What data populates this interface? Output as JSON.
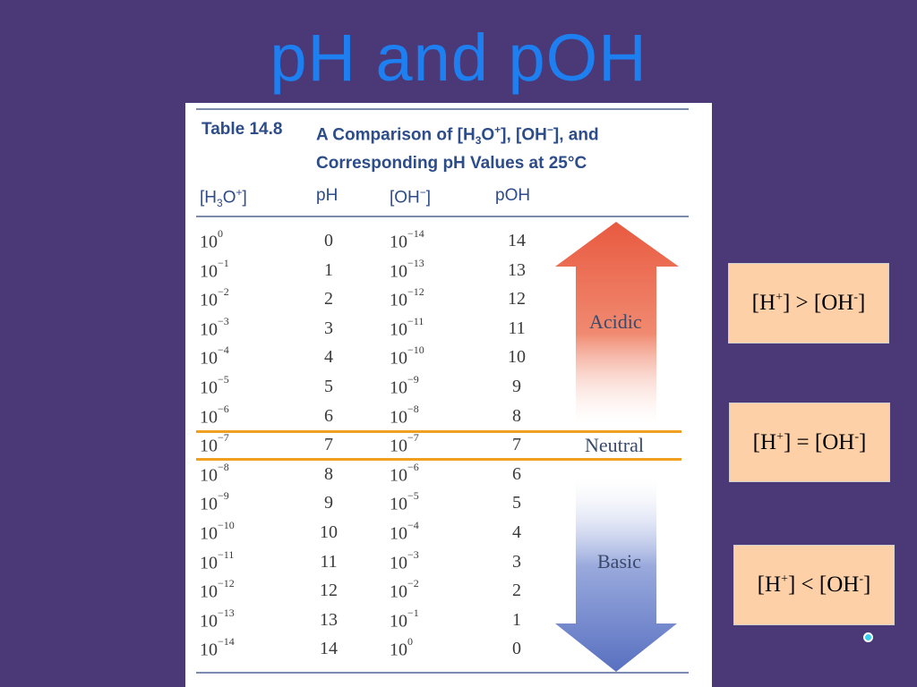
{
  "title": "pH and pOH",
  "table": {
    "number": "Table 14.8",
    "caption_pre": "A Comparison of [H",
    "caption_sub": "3",
    "caption_mid1": "O",
    "caption_sup1": "+",
    "caption_mid2": "], [OH",
    "caption_sup2": "−",
    "caption_end1": "], and",
    "caption_line2": "Corresponding pH Values at 25°C",
    "headers": {
      "h3o_pre": "[H",
      "h3o_sub": "3",
      "h3o_mid": "O",
      "h3o_sup": "+",
      "h3o_end": "]",
      "ph": "pH",
      "oh_pre": "[OH",
      "oh_sup": "−",
      "oh_end": "]",
      "poh": "pOH"
    },
    "rows": [
      {
        "h3o_base": "10",
        "h3o_exp": "0",
        "ph": "0",
        "oh_base": "10",
        "oh_exp": "−14",
        "poh": "14"
      },
      {
        "h3o_base": "10",
        "h3o_exp": "−1",
        "ph": "1",
        "oh_base": "10",
        "oh_exp": "−13",
        "poh": "13"
      },
      {
        "h3o_base": "10",
        "h3o_exp": "−2",
        "ph": "2",
        "oh_base": "10",
        "oh_exp": "−12",
        "poh": "12"
      },
      {
        "h3o_base": "10",
        "h3o_exp": "−3",
        "ph": "3",
        "oh_base": "10",
        "oh_exp": "−11",
        "poh": "11"
      },
      {
        "h3o_base": "10",
        "h3o_exp": "−4",
        "ph": "4",
        "oh_base": "10",
        "oh_exp": "−10",
        "poh": "10"
      },
      {
        "h3o_base": "10",
        "h3o_exp": "−5",
        "ph": "5",
        "oh_base": "10",
        "oh_exp": "−9",
        "poh": "9"
      },
      {
        "h3o_base": "10",
        "h3o_exp": "−6",
        "ph": "6",
        "oh_base": "10",
        "oh_exp": "−8",
        "poh": "8"
      },
      {
        "h3o_base": "10",
        "h3o_exp": "−7",
        "ph": "7",
        "oh_base": "10",
        "oh_exp": "−7",
        "poh": "7"
      },
      {
        "h3o_base": "10",
        "h3o_exp": "−8",
        "ph": "8",
        "oh_base": "10",
        "oh_exp": "−6",
        "poh": "6"
      },
      {
        "h3o_base": "10",
        "h3o_exp": "−9",
        "ph": "9",
        "oh_base": "10",
        "oh_exp": "−5",
        "poh": "5"
      },
      {
        "h3o_base": "10",
        "h3o_exp": "−10",
        "ph": "10",
        "oh_base": "10",
        "oh_exp": "−4",
        "poh": "4"
      },
      {
        "h3o_base": "10",
        "h3o_exp": "−11",
        "ph": "11",
        "oh_base": "10",
        "oh_exp": "−3",
        "poh": "3"
      },
      {
        "h3o_base": "10",
        "h3o_exp": "−12",
        "ph": "12",
        "oh_base": "10",
        "oh_exp": "−2",
        "poh": "2"
      },
      {
        "h3o_base": "10",
        "h3o_exp": "−13",
        "ph": "13",
        "oh_base": "10",
        "oh_exp": "−1",
        "poh": "1"
      },
      {
        "h3o_base": "10",
        "h3o_exp": "−14",
        "ph": "14",
        "oh_base": "10",
        "oh_exp": "0",
        "poh": "0"
      }
    ],
    "acidic_label": "Acidic",
    "neutral_label": "Neutral",
    "basic_label": "Basic"
  },
  "relations": [
    {
      "l_pre": "[H",
      "l_sup": "+",
      "mid": "] > [OH",
      "r_sup": "-",
      "end": "]"
    },
    {
      "l_pre": "[H",
      "l_sup": "+",
      "mid": "] = [OH",
      "r_sup": "-",
      "end": "]"
    },
    {
      "l_pre": "[H",
      "l_sup": "+",
      "mid": "] < [OH",
      "r_sup": "-",
      "end": "]"
    }
  ],
  "colors": {
    "background": "#4a3877",
    "title": "#1e7ff0",
    "acidic_arrow": "#e85a40",
    "basic_arrow": "#5870c0",
    "neutral_line": "#f0a020",
    "relation_box": "#fdd0a8"
  },
  "icons": {
    "nav": "nav-dot-icon",
    "acid_arrow": "up-arrow-icon",
    "base_arrow": "down-arrow-icon"
  }
}
